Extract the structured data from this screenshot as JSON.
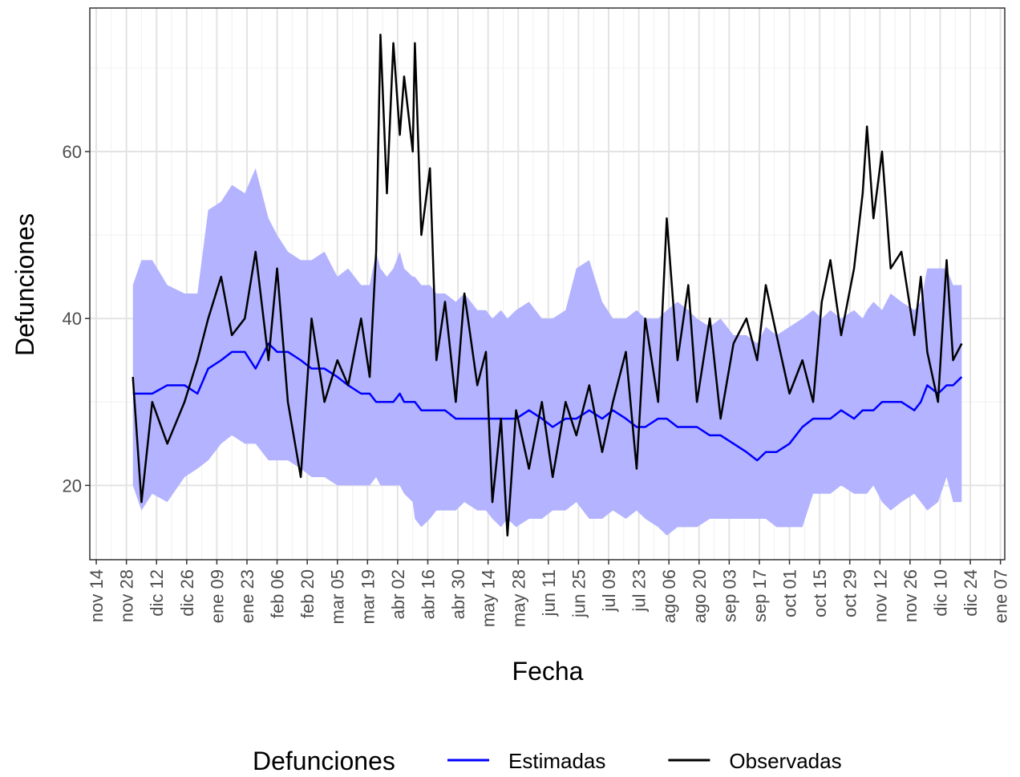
{
  "chart_data": {
    "type": "line",
    "x_label": "Fecha",
    "y_label": "Defunciones",
    "legend_title": "Defunciones",
    "xlim": [
      -3,
      422
    ],
    "ylim": [
      11.1,
      77.2
    ],
    "grid": true,
    "minor_grid": true,
    "legend": "bottom",
    "yticks": [
      20,
      40,
      60
    ],
    "xticks": [
      {
        "value": 0,
        "label": "nov 14"
      },
      {
        "value": 14,
        "label": "nov 28"
      },
      {
        "value": 28,
        "label": "dic 12"
      },
      {
        "value": 42,
        "label": "dic 26"
      },
      {
        "value": 56,
        "label": "ene 09"
      },
      {
        "value": 70,
        "label": "ene 23"
      },
      {
        "value": 84,
        "label": "feb 06"
      },
      {
        "value": 98,
        "label": "feb 20"
      },
      {
        "value": 112,
        "label": "mar 05"
      },
      {
        "value": 126,
        "label": "mar 19"
      },
      {
        "value": 140,
        "label": "abr 02"
      },
      {
        "value": 154,
        "label": "abr 16"
      },
      {
        "value": 168,
        "label": "abr 30"
      },
      {
        "value": 182,
        "label": "may 14"
      },
      {
        "value": 196,
        "label": "may 28"
      },
      {
        "value": 210,
        "label": "jun 11"
      },
      {
        "value": 224,
        "label": "jun 25"
      },
      {
        "value": 238,
        "label": "jul 09"
      },
      {
        "value": 252,
        "label": "jul 23"
      },
      {
        "value": 266,
        "label": "ago 06"
      },
      {
        "value": 280,
        "label": "ago 20"
      },
      {
        "value": 294,
        "label": "sep 03"
      },
      {
        "value": 308,
        "label": "sep 17"
      },
      {
        "value": 322,
        "label": "oct 01"
      },
      {
        "value": 336,
        "label": "oct 15"
      },
      {
        "value": 350,
        "label": "oct 29"
      },
      {
        "value": 364,
        "label": "nov 12"
      },
      {
        "value": 378,
        "label": "nov 26"
      },
      {
        "value": 392,
        "label": "dic 10"
      },
      {
        "value": 406,
        "label": "dic 24"
      },
      {
        "value": 420,
        "label": "ene 07"
      }
    ],
    "x": [
      17,
      21,
      26,
      33,
      41,
      47,
      52,
      58,
      63,
      69,
      74,
      80,
      84,
      89,
      95,
      100,
      106,
      112,
      117,
      123,
      127,
      130,
      132,
      135,
      138,
      141,
      143,
      147,
      148,
      151,
      155,
      158,
      162,
      167,
      171,
      177,
      181,
      184,
      188,
      191,
      195,
      201,
      207,
      212,
      218,
      223,
      229,
      235,
      240,
      246,
      251,
      255,
      261,
      265,
      270,
      275,
      279,
      285,
      290,
      296,
      302,
      307,
      311,
      316,
      322,
      328,
      333,
      337,
      341,
      346,
      352,
      356,
      358,
      361,
      365,
      369,
      374,
      380,
      383,
      386,
      391,
      395,
      398,
      402
    ],
    "band": {
      "color": "#b3b3ff",
      "upper": [
        44,
        47,
        47,
        44,
        43,
        43,
        53,
        54,
        56,
        55,
        58,
        52,
        50,
        48,
        47,
        47,
        48,
        45,
        46,
        44,
        44,
        48,
        46,
        45,
        46,
        48,
        46,
        45,
        45,
        44,
        44,
        43,
        43,
        42,
        43,
        41,
        41,
        40,
        41,
        40,
        41,
        42,
        40,
        40,
        41,
        46,
        47,
        42,
        40,
        40,
        41,
        40,
        40,
        41,
        42,
        41,
        40,
        39,
        40,
        38,
        38,
        37,
        39,
        38,
        39,
        40,
        41,
        40,
        41,
        40,
        41,
        40,
        41,
        42,
        41,
        43,
        42,
        41,
        42,
        46,
        46,
        46,
        44,
        44
      ],
      "lower": [
        20,
        17,
        19,
        18,
        21,
        22,
        23,
        25,
        26,
        25,
        25,
        23,
        23,
        23,
        22,
        21,
        21,
        20,
        20,
        20,
        20,
        21,
        20,
        20,
        20,
        20,
        19,
        18,
        16,
        15,
        16,
        17,
        17,
        17,
        18,
        17,
        17,
        16,
        15,
        16,
        15,
        16,
        16,
        17,
        17,
        18,
        16,
        16,
        17,
        16,
        17,
        16,
        15,
        14,
        15,
        15,
        15,
        16,
        16,
        16,
        16,
        16,
        16,
        15,
        15,
        15,
        19,
        19,
        19,
        20,
        19,
        19,
        19,
        20,
        18,
        17,
        18,
        19,
        18,
        17,
        18,
        21,
        18,
        18
      ]
    },
    "series": [
      {
        "name": "Estimadas",
        "color": "#0000ff",
        "values": [
          31,
          31,
          31,
          32,
          32,
          31,
          34,
          35,
          36,
          36,
          34,
          37,
          36,
          36,
          35,
          34,
          34,
          33,
          32,
          31,
          31,
          30,
          30,
          30,
          30,
          31,
          30,
          30,
          30,
          29,
          29,
          29,
          29,
          28,
          28,
          28,
          28,
          28,
          28,
          28,
          28,
          29,
          28,
          27,
          28,
          28,
          29,
          28,
          29,
          28,
          27,
          27,
          28,
          28,
          27,
          27,
          27,
          26,
          26,
          25,
          24,
          23,
          24,
          24,
          25,
          27,
          28,
          28,
          28,
          29,
          28,
          29,
          29,
          29,
          30,
          30,
          30,
          29,
          30,
          32,
          31,
          32,
          32,
          33
        ]
      },
      {
        "name": "Observadas",
        "color": "#000000",
        "values": [
          33,
          18,
          30,
          25,
          30,
          35,
          40,
          45,
          38,
          40,
          48,
          35,
          46,
          30,
          21,
          40,
          30,
          35,
          32,
          40,
          33,
          48,
          74,
          55,
          73,
          62,
          69,
          60,
          73,
          50,
          58,
          35,
          42,
          30,
          43,
          32,
          36,
          18,
          28,
          14,
          29,
          22,
          30,
          21,
          30,
          26,
          32,
          24,
          30,
          36,
          22,
          40,
          30,
          52,
          35,
          44,
          30,
          40,
          28,
          37,
          40,
          35,
          44,
          38,
          31,
          35,
          30,
          42,
          47,
          38,
          46,
          55,
          63,
          52,
          60,
          46,
          48,
          38,
          45,
          36,
          30,
          47,
          35,
          37
        ]
      }
    ]
  }
}
